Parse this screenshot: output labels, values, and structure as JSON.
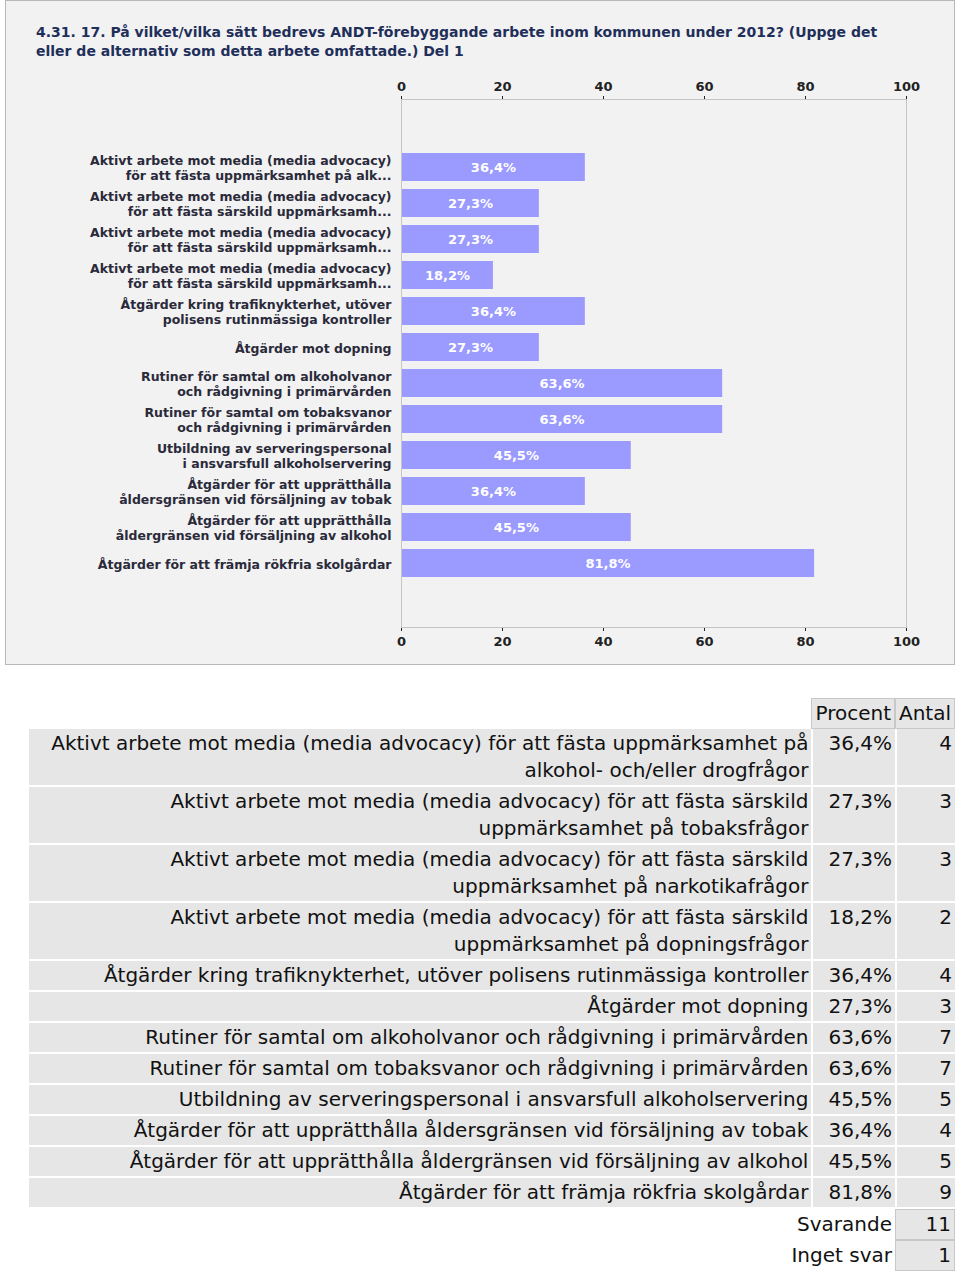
{
  "chart_data": {
    "type": "bar",
    "orientation": "horizontal",
    "title": "4.31. 17. På vilket/vilka sätt bedrevs ANDT-förebyggande arbete inom kommunen under 2012? (Uppge det eller de alternativ som detta arbete omfattade.) Del 1",
    "categories": [
      "Aktivt arbete mot media (media advocacy)\nför att fästa uppmärksamhet på alk...",
      "Aktivt arbete mot media (media advocacy)\nför att fästa särskild uppmärksamh...",
      "Aktivt arbete mot media (media advocacy)\nför att fästa särskild uppmärksamh...",
      "Aktivt arbete mot media (media advocacy)\nför att fästa särskild uppmärksamh...",
      "Åtgärder kring trafiknykterhet, utöver\npolisens rutinmässiga kontroller",
      "Åtgärder mot dopning",
      "Rutiner för samtal om alkoholvanor\noch rådgivning i primärvården",
      "Rutiner för samtal om tobaksvanor\noch rådgivning i primärvården",
      "Utbildning av serveringspersonal\ni ansvarsfull alkoholservering",
      "Åtgärder för att upprätthålla\nåldersgränsen vid försäljning av tobak",
      "Åtgärder för att upprätthålla\nåldergränsen vid försäljning av alkohol",
      "Åtgärder för att främja rökfria skolgårdar"
    ],
    "values": [
      36.4,
      27.3,
      27.3,
      18.2,
      36.4,
      27.3,
      63.6,
      63.6,
      45.5,
      36.4,
      45.5,
      81.8
    ],
    "value_labels": [
      "36,4%",
      "27,3%",
      "27,3%",
      "18,2%",
      "36,4%",
      "27,3%",
      "63,6%",
      "63,6%",
      "45,5%",
      "36,4%",
      "45,5%",
      "81,8%"
    ],
    "data_labels": true,
    "color": "#9a9aff",
    "xlim": [
      0,
      100
    ],
    "xticks": [
      0,
      20,
      40,
      60,
      80,
      100
    ],
    "grid": false
  },
  "table": {
    "header": [
      "Procent",
      "Antal"
    ],
    "rows": [
      [
        "Aktivt arbete mot media (media advocacy) för att fästa uppmärksamhet på alkohol- och/eller drogfrågor",
        "36,4%",
        4
      ],
      [
        "Aktivt arbete mot media (media advocacy) för att fästa särskild uppmärksamhet på tobaksfrågor",
        "27,3%",
        3
      ],
      [
        "Aktivt arbete mot media (media advocacy) för att fästa särskild uppmärksamhet på narkotikafrågor",
        "27,3%",
        3
      ],
      [
        "Aktivt arbete mot media (media advocacy) för att fästa särskild uppmärksamhet på dopningsfrågor",
        "18,2%",
        2
      ],
      [
        "Åtgärder kring trafiknykterhet, utöver polisens rutinmässiga kontroller",
        "36,4%",
        4
      ],
      [
        "Åtgärder mot dopning",
        "27,3%",
        3
      ],
      [
        "Rutiner för samtal om alkoholvanor och rådgivning i primärvården",
        "63,6%",
        7
      ],
      [
        "Rutiner för samtal om tobaksvanor och rådgivning i primärvården",
        "63,6%",
        7
      ],
      [
        "Utbildning av serveringspersonal i ansvarsfull alkoholservering",
        "45,5%",
        5
      ],
      [
        "Åtgärder för att upprätthålla åldersgränsen vid försäljning av tobak",
        "36,4%",
        4
      ],
      [
        "Åtgärder för att upprätthålla åldergränsen vid försäljning av alkohol",
        "45,5%",
        5
      ],
      [
        "Åtgärder för att främja rökfria skolgårdar",
        "81,8%",
        9
      ]
    ],
    "footer": [
      [
        "Svarande",
        11
      ],
      [
        "Inget svar",
        1
      ]
    ]
  }
}
